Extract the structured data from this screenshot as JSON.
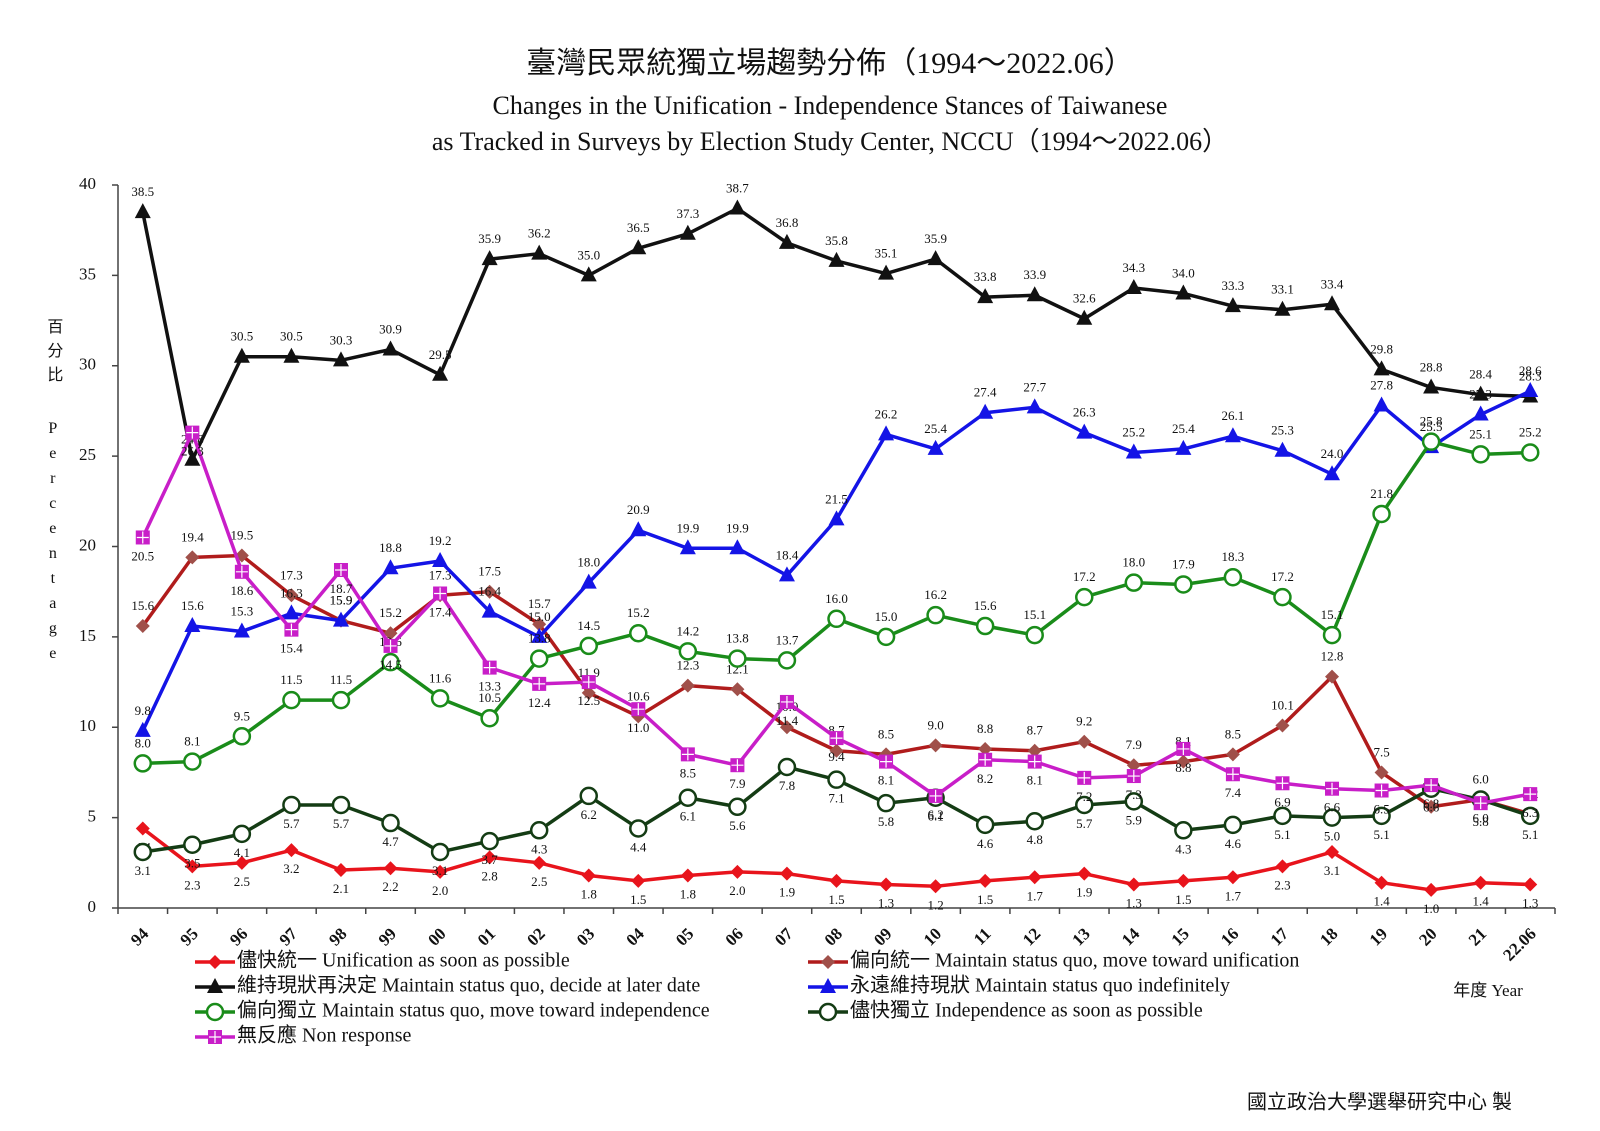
{
  "chart_data": {
    "type": "line",
    "title": "臺灣民眾統獨立場趨勢分佈（1994～2022.06）",
    "subtitle": [
      "Changes in the Unification - Independence Stances of Taiwanese",
      "as Tracked in Surveys by Election Study Center, NCCU（1994～2022.06）"
    ],
    "y_label_zh": "百分比",
    "y_label_en": "Percentage",
    "x_label": "年度 Year",
    "credit": "國立政治大學選舉研究中心 製",
    "categories": [
      "94",
      "95",
      "96",
      "97",
      "98",
      "99",
      "00",
      "01",
      "02",
      "03",
      "04",
      "05",
      "06",
      "07",
      "08",
      "09",
      "10",
      "11",
      "12",
      "13",
      "14",
      "15",
      "16",
      "17",
      "18",
      "19",
      "20",
      "21",
      "22.06"
    ],
    "ylim": [
      0,
      40
    ],
    "yticks": [
      0,
      5,
      10,
      15,
      20,
      25,
      30,
      35,
      40
    ],
    "grid": false,
    "series": [
      {
        "name": "儘快統一 Unification as soon as possible",
        "color": "#e8141c",
        "marker": "diamond",
        "values": [
          4.4,
          2.3,
          2.5,
          3.2,
          2.1,
          2.2,
          2.0,
          2.8,
          2.5,
          1.8,
          1.5,
          1.8,
          2.0,
          1.9,
          1.5,
          1.3,
          1.2,
          1.5,
          1.7,
          1.9,
          1.3,
          1.5,
          1.7,
          2.3,
          3.1,
          1.4,
          1.0,
          1.4,
          1.3
        ],
        "value_labels": [
          "4.4",
          "2.3",
          "2.5",
          "3.2",
          "2.1",
          "2.2",
          "2.0",
          "2.8",
          "2.5",
          "1.8",
          "1.5",
          "1.8",
          "2.0",
          "1.9",
          "1.5",
          "1.3",
          "1.2",
          "1.5",
          "1.7",
          "1.9",
          "1.3",
          "1.5",
          "1.7",
          "2.3",
          "3.1",
          "1.4",
          "1.0",
          "1.4",
          "1.3"
        ]
      },
      {
        "name": "偏向統一 Maintain status quo, move toward unification",
        "color": "#b01c1c",
        "marker_color": "#a0504a",
        "marker": "diamond",
        "values": [
          15.6,
          19.4,
          19.5,
          17.3,
          15.9,
          15.2,
          17.3,
          17.5,
          15.7,
          11.9,
          10.6,
          12.3,
          12.1,
          10.0,
          8.7,
          8.5,
          9.0,
          8.8,
          8.7,
          9.2,
          7.9,
          8.1,
          8.5,
          10.1,
          12.8,
          7.5,
          5.6,
          6.0,
          5.2
        ],
        "value_labels": [
          "15.6",
          "19.4",
          "19.5",
          "17.3",
          "15.9",
          "15.2",
          "17.3",
          "17.5",
          "15.7",
          "11.9",
          "10.6",
          "12.3",
          "12.1",
          "10.0",
          "8.7",
          "8.5",
          "9.0",
          "8.8",
          "8.7",
          "9.2",
          "7.9",
          "8.1",
          "8.5",
          "10.1",
          "12.8",
          "7.5",
          "5.6",
          "6.0",
          "5.2"
        ]
      },
      {
        "name": "維持現狀再決定 Maintain status quo, decide at later date",
        "color": "#111111",
        "marker": "triangle",
        "values": [
          38.5,
          24.8,
          30.5,
          30.5,
          30.3,
          30.9,
          29.5,
          35.9,
          36.2,
          35.0,
          36.5,
          37.3,
          38.7,
          36.8,
          35.8,
          35.1,
          35.9,
          33.8,
          33.9,
          32.6,
          34.3,
          34.0,
          33.3,
          33.1,
          33.4,
          29.8,
          28.8,
          28.4,
          28.3
        ],
        "value_labels": [
          "38.5",
          "24.8",
          "30.5",
          "30.5",
          "30.3",
          "30.9",
          "29.5",
          "35.9",
          "36.2",
          "35.0",
          "36.5",
          "37.3",
          "38.7",
          "36.8",
          "35.8",
          "35.1",
          "35.9",
          "33.8",
          "33.9",
          "32.6",
          "34.3",
          "34.0",
          "33.3",
          "33.1",
          "33.4",
          "29.8",
          "28.8",
          "28.4",
          "28.3"
        ]
      },
      {
        "name": "永遠維持現狀 Maintain status quo indefinitely",
        "color": "#1414e6",
        "marker": "triangle",
        "values": [
          9.8,
          15.6,
          15.3,
          16.3,
          15.9,
          18.8,
          19.2,
          16.4,
          15.0,
          18.0,
          20.9,
          19.9,
          19.9,
          18.4,
          21.5,
          26.2,
          25.4,
          27.4,
          27.7,
          26.3,
          25.2,
          25.4,
          26.1,
          25.3,
          24.0,
          27.8,
          25.5,
          27.3,
          28.6
        ],
        "value_labels": [
          "9.8",
          "15.6",
          "15.3",
          "16.3",
          "15.9",
          "18.8",
          "19.2",
          "16.4",
          "15.0",
          "18.0",
          "20.9",
          "19.9",
          "19.9",
          "18.4",
          "21.5",
          "26.2",
          "25.4",
          "27.4",
          "27.7",
          "26.3",
          "25.2",
          "25.4",
          "26.1",
          "25.3",
          "24.0",
          "27.8",
          "25.5",
          "27.3",
          "28.6"
        ]
      },
      {
        "name": "偏向獨立 Maintain status quo, move toward independence",
        "color": "#1a8c1a",
        "marker": "ring",
        "values": [
          8.0,
          8.1,
          9.5,
          11.5,
          11.5,
          13.6,
          11.6,
          10.5,
          13.8,
          14.5,
          15.2,
          14.2,
          13.8,
          13.7,
          16.0,
          15.0,
          16.2,
          15.6,
          15.1,
          17.2,
          18.0,
          17.9,
          18.3,
          17.2,
          15.1,
          21.8,
          25.8,
          25.1,
          25.2
        ],
        "value_labels": [
          "8.0",
          "8.1",
          "9.5",
          "11.5",
          "11.5",
          "13.6",
          "11.6",
          "10.5",
          "13.8",
          "14.5",
          "15.2",
          "14.2",
          "13.8",
          "13.7",
          "16.0",
          "15.0",
          "16.2",
          "15.6",
          "15.1",
          "17.2",
          "18.0",
          "17.9",
          "18.3",
          "17.2",
          "15.1",
          "21.8",
          "25.8",
          "25.1",
          "25.2"
        ]
      },
      {
        "name": "儘快獨立 Independence as soon as possible",
        "color": "#143c14",
        "marker": "ring",
        "values": [
          3.1,
          3.5,
          4.1,
          5.7,
          5.7,
          4.7,
          3.1,
          3.7,
          4.3,
          6.2,
          4.4,
          6.1,
          5.6,
          7.8,
          7.1,
          5.8,
          6.1,
          4.6,
          4.8,
          5.7,
          5.9,
          4.3,
          4.6,
          5.1,
          5.0,
          5.1,
          6.6,
          6.0,
          5.1
        ],
        "value_labels": [
          "3.1",
          "3.5",
          "4.1",
          "5.7",
          "5.7",
          "4.7",
          "3.1",
          "3.7",
          "4.3",
          "6.2",
          "4.4",
          "6.1",
          "5.6",
          "7.8",
          "7.1",
          "5.8",
          "6.1",
          "4.6",
          "4.8",
          "5.7",
          "5.9",
          "4.3",
          "4.6",
          "5.1",
          "5.0",
          "5.1",
          "6.6",
          "6.0",
          "5.1"
        ]
      },
      {
        "name": "無反應 Non response",
        "color": "#c81ec8",
        "marker": "square",
        "values": [
          20.5,
          26.3,
          18.6,
          15.4,
          18.7,
          14.5,
          17.4,
          13.3,
          12.4,
          12.5,
          11.0,
          8.5,
          7.9,
          11.4,
          9.4,
          8.1,
          6.2,
          8.2,
          8.1,
          7.2,
          7.3,
          8.8,
          7.4,
          6.9,
          6.6,
          6.5,
          6.8,
          5.8,
          6.3
        ],
        "value_labels": [
          "20.5",
          "26.3",
          "18.6",
          "15.4",
          "18.7",
          "14.5",
          "17.4",
          "13.3",
          "12.4",
          "12.5",
          "11.0",
          "8.5",
          "7.9",
          "11.4",
          "9.4",
          "8.1",
          "6.2",
          "8.2",
          "8.1",
          "7.2",
          "7.3",
          "8.8",
          "7.4",
          "6.9",
          "6.6",
          "6.5",
          "6.8",
          "5.8",
          "6.3"
        ]
      }
    ]
  }
}
